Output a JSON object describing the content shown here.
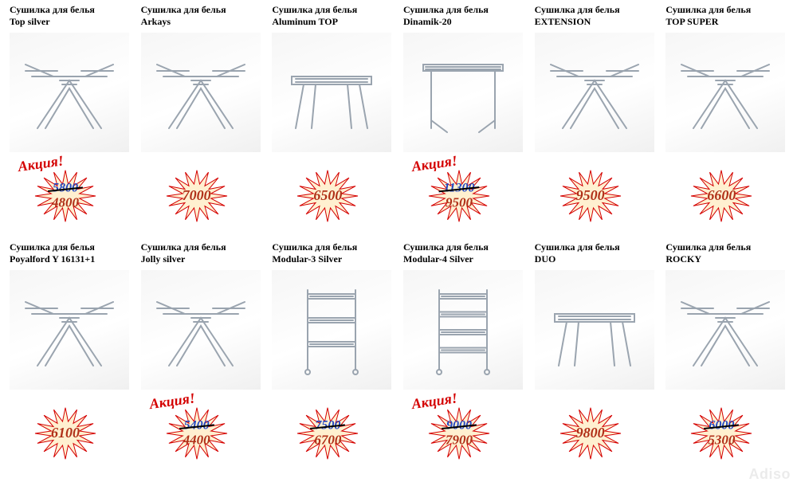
{
  "promo_text": "Акция!",
  "burst": {
    "fill": "#fff0d0",
    "stroke": "#d40000",
    "stroke_width": 1
  },
  "colors": {
    "old_price": "#2147c2",
    "new_price": "#b03018",
    "promo": "#d40000",
    "title": "#000000"
  },
  "watermark": "Adiso",
  "products": [
    {
      "label_line1": "Сушилка для белья",
      "label_line2": "Top silver",
      "has_promo": true,
      "old_price": "5800",
      "new_price": "4800",
      "rack": "wing"
    },
    {
      "label_line1": "Сушилка для белья",
      "label_line2": "Arkays",
      "has_promo": false,
      "old_price": null,
      "new_price": "7000",
      "rack": "wing"
    },
    {
      "label_line1": "Сушилка для белья",
      "label_line2": "Aluminum TOP",
      "has_promo": false,
      "old_price": null,
      "new_price": "6500",
      "rack": "flat"
    },
    {
      "label_line1": "Сушилка для белья",
      "label_line2": "Dinamik-20",
      "has_promo": true,
      "old_price": "11300",
      "new_price": "9500",
      "rack": "table"
    },
    {
      "label_line1": "Сушилка для белья",
      "label_line2": "EXTENSION",
      "has_promo": false,
      "old_price": null,
      "new_price": "9500",
      "rack": "wing"
    },
    {
      "label_line1": "Сушилка для белья",
      "label_line2": "TOP SUPER",
      "has_promo": false,
      "old_price": null,
      "new_price": "6600",
      "rack": "wing"
    },
    {
      "label_line1": "Сушилка для белья",
      "label_line2": "Poyalford Y 16131+1",
      "has_promo": false,
      "old_price": null,
      "new_price": "6100",
      "rack": "wing"
    },
    {
      "label_line1": "Сушилка для белья",
      "label_line2": "Jolly silver",
      "has_promo": true,
      "old_price": "5400",
      "new_price": "4400",
      "rack": "wing"
    },
    {
      "label_line1": "Сушилка для белья",
      "label_line2": "Modular-3  Silver",
      "has_promo": false,
      "old_price": "7500",
      "new_price": "6700",
      "rack": "tower3"
    },
    {
      "label_line1": "Сушилка для белья",
      "label_line2": "Modular-4  Silver",
      "has_promo": true,
      "old_price": "9000",
      "new_price": "7900",
      "rack": "tower4"
    },
    {
      "label_line1": "Сушилка для белья",
      "label_line2": "DUO",
      "has_promo": false,
      "old_price": null,
      "new_price": "9800",
      "rack": "flat"
    },
    {
      "label_line1": "Сушилка для белья",
      "label_line2": "ROCKY",
      "has_promo": false,
      "old_price": "6000",
      "new_price": "5300",
      "rack": "wing"
    }
  ]
}
